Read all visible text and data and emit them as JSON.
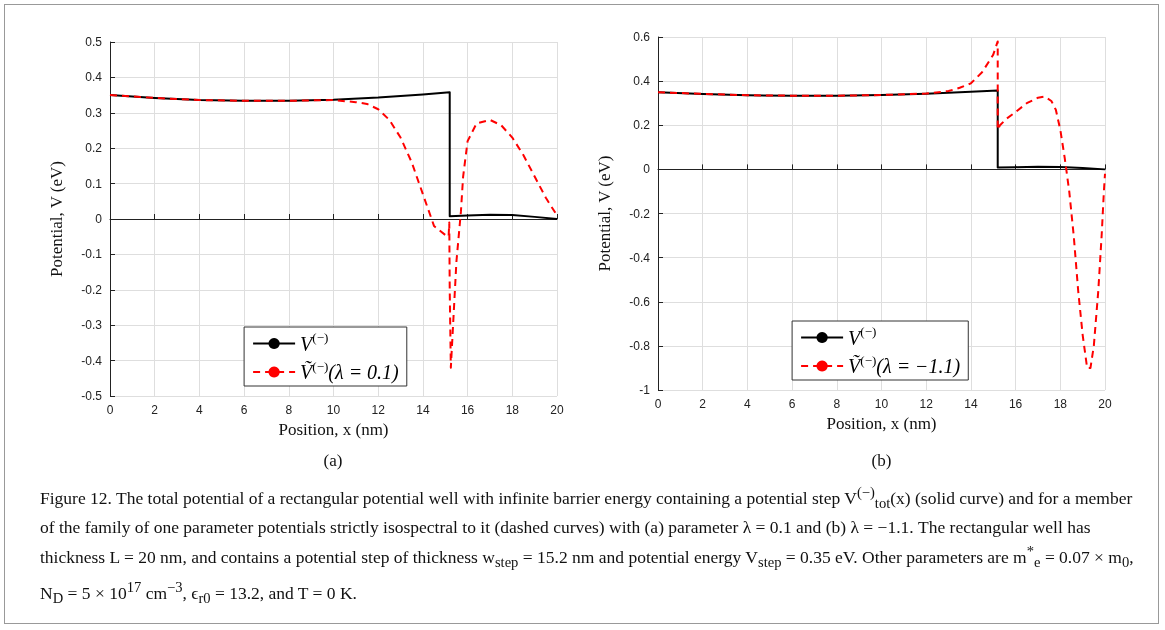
{
  "chart_data": [
    {
      "type": "line",
      "xlabel": "Position, x (nm)",
      "ylabel": "Potential, V (eV)",
      "xlim": [
        0,
        20
      ],
      "xticks": [
        0,
        2,
        4,
        6,
        8,
        10,
        12,
        14,
        16,
        18,
        20
      ],
      "ylim": [
        -0.5,
        0.5
      ],
      "yticks": [
        -0.5,
        -0.4,
        -0.3,
        -0.2,
        -0.1,
        0,
        0.1,
        0.2,
        0.3,
        0.4,
        0.5
      ],
      "grid": true,
      "legend": "bottom",
      "marker": "none",
      "annotations": [
        "(a)",
        "Figure 12. The total potential of a rectangular potential well with infinite barrier energy containing a potential step V$^{(−)}$$_{tot}$(x) (solid curve) and for a member of the family of one parameter potentials strictly isospectral to it (dashed curves) with (a) parameter λ = 0.1 and (b) λ = −1.1. The rectangular well has thickness L = 20 nm, and contains a potential step of thickness w$_{step}$ = 15.2 nm and potential energy V$_{step}$ = 0.35 eV. Other parameters are m$^{*}$$_{e}$ = 0.07 × m$_{0}$, N$_{D}$ = 5 × 10$^{17}$ cm$^{−3}$, ϵ$_{r0}$ = 13.2, and T = 0 K."
      ],
      "series": [
        {
          "name": "V$^{(−)}$",
          "color": "#000000",
          "line_style": "solid",
          "x": [
            0,
            2,
            4,
            6,
            8,
            10,
            12,
            14,
            15.2,
            15.2,
            16,
            17,
            18,
            19,
            20
          ],
          "values": [
            0.35,
            0.342,
            0.336,
            0.334,
            0.334,
            0.337,
            0.343,
            0.352,
            0.358,
            0.008,
            0.01,
            0.012,
            0.011,
            0.006,
            0
          ]
        },
        {
          "name": "Ṽ$^{(−)}$(λ = 0.1)",
          "color": "#ff0000",
          "line_style": "dashed",
          "x": [
            0,
            2,
            4,
            6,
            8,
            10,
            11,
            11.5,
            12,
            12.5,
            13,
            13.5,
            14,
            14.5,
            15,
            15.15,
            15.18,
            15.2,
            15.25,
            15.35,
            15.5,
            15.7,
            15.8,
            16,
            16.4,
            17,
            17.5,
            18,
            18.5,
            19,
            19.5,
            20
          ],
          "values": [
            0.35,
            0.342,
            0.336,
            0.334,
            0.334,
            0.336,
            0.33,
            0.325,
            0.31,
            0.28,
            0.23,
            0.16,
            0.07,
            -0.02,
            -0.045,
            -0.05,
            -0.01,
            -0.2,
            -0.42,
            -0.3,
            -0.12,
            0.02,
            0.12,
            0.22,
            0.27,
            0.28,
            0.265,
            0.23,
            0.18,
            0.12,
            0.06,
            0.01
          ]
        }
      ]
    },
    {
      "type": "line",
      "xlabel": "Position, x (nm)",
      "ylabel": "Potential, V (eV)",
      "xlim": [
        0,
        20
      ],
      "xticks": [
        0,
        2,
        4,
        6,
        8,
        10,
        12,
        14,
        16,
        18,
        20
      ],
      "ylim": [
        -1,
        0.6
      ],
      "yticks": [
        -1,
        -0.8,
        -0.6,
        -0.4,
        -0.2,
        0,
        0.2,
        0.4,
        0.6
      ],
      "grid": true,
      "legend": "bottom",
      "marker": "none",
      "annotations": [
        "(b)"
      ],
      "series": [
        {
          "name": "V$^{(−)}$",
          "color": "#000000",
          "line_style": "solid",
          "x": [
            0,
            2,
            4,
            6,
            8,
            10,
            12,
            14,
            15.2,
            15.2,
            16,
            17,
            18,
            19,
            20
          ],
          "values": [
            0.35,
            0.342,
            0.336,
            0.334,
            0.334,
            0.337,
            0.343,
            0.352,
            0.358,
            0.008,
            0.01,
            0.012,
            0.011,
            0.006,
            0
          ]
        },
        {
          "name": "Ṽ$^{(−)}$(λ = −1.1)",
          "color": "#ff0000",
          "line_style": "dashed",
          "x": [
            0,
            2,
            4,
            6,
            8,
            10,
            12,
            13,
            13.5,
            14,
            14.5,
            15,
            15.2,
            15.2,
            15.3,
            15.6,
            16,
            16.5,
            17,
            17.3,
            17.6,
            17.8,
            18,
            18.2,
            18.4,
            18.6,
            18.8,
            19,
            19.2,
            19.35,
            19.5,
            19.7,
            19.85,
            19.95,
            20
          ],
          "values": [
            0.35,
            0.342,
            0.336,
            0.334,
            0.334,
            0.337,
            0.344,
            0.355,
            0.37,
            0.39,
            0.44,
            0.52,
            0.58,
            0.18,
            0.2,
            0.23,
            0.26,
            0.3,
            0.325,
            0.33,
            0.31,
            0.27,
            0.18,
            0.05,
            -0.1,
            -0.3,
            -0.55,
            -0.75,
            -0.9,
            -0.9,
            -0.8,
            -0.55,
            -0.3,
            -0.1,
            -0.02
          ]
        }
      ]
    }
  ]
}
